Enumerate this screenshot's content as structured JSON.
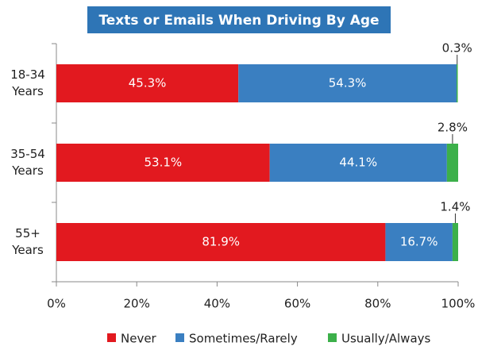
{
  "chart_data": {
    "type": "stacked_barh",
    "title": "Texts or Emails When Driving By Age",
    "categories": [
      "18-34 Years",
      "35-54 Years",
      "55+ Years"
    ],
    "series": [
      {
        "name": "Never",
        "color": "#e2191f",
        "values": [
          45.3,
          53.1,
          81.9
        ],
        "value_labels": [
          "45.3%",
          "53.1%",
          "81.9%"
        ]
      },
      {
        "name": "Sometimes/Rarely",
        "color": "#3a7fc1",
        "values": [
          54.3,
          44.1,
          16.7
        ],
        "value_labels": [
          "54.3%",
          "44.1%",
          "16.7%"
        ]
      },
      {
        "name": "Usually/Always",
        "color": "#3cb04a",
        "values": [
          0.3,
          2.8,
          1.4
        ],
        "value_labels": [
          "0.3%",
          "2.8%",
          "1.4%"
        ]
      }
    ],
    "xlim": [
      0,
      100
    ],
    "xticks": [
      {
        "value": 0,
        "label": "0%"
      },
      {
        "value": 20,
        "label": "20%"
      },
      {
        "value": 40,
        "label": "40%"
      },
      {
        "value": 60,
        "label": "60%"
      },
      {
        "value": 80,
        "label": "80%"
      },
      {
        "value": 100,
        "label": "100%"
      }
    ],
    "legend": "bottom"
  }
}
